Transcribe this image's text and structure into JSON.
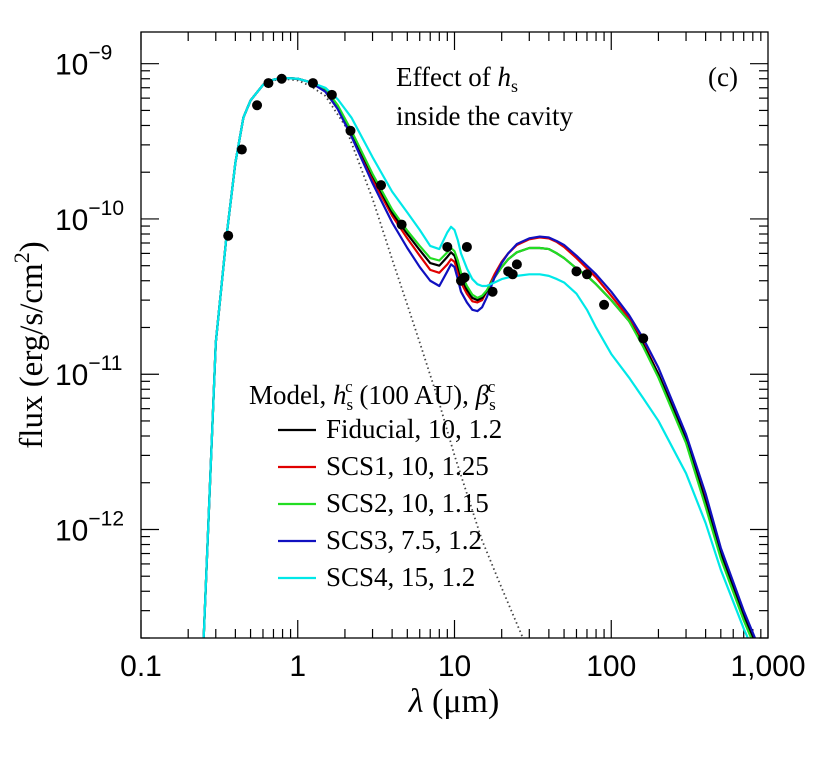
{
  "chart_data": {
    "type": "line",
    "title": "",
    "panel_label": "(c)",
    "annotation": {
      "line1_prefix": "Effect of ",
      "line1_sym": "h",
      "line1_sub": "s",
      "line2": "inside the cavity"
    },
    "xlabel": {
      "sym": "λ",
      "unit": " (μm)"
    },
    "ylabel": {
      "text": "flux (erg/s/cm",
      "sup": "2",
      "close": ")"
    },
    "x_scale": "log",
    "y_scale": "log",
    "xlim": [
      0.1,
      1000
    ],
    "ylim": [
      2e-13,
      1.6e-09
    ],
    "x_ticks": [
      {
        "value": 0.1,
        "label": "0.1"
      },
      {
        "value": 1,
        "label": "1"
      },
      {
        "value": 10,
        "label": "10"
      },
      {
        "value": 100,
        "label": "100"
      },
      {
        "value": 1000,
        "label": "1,000"
      }
    ],
    "y_ticks": [
      {
        "value": 1e-09,
        "base": "10",
        "exp": "−9"
      },
      {
        "value": 1e-10,
        "base": "10",
        "exp": "−10"
      },
      {
        "value": 1e-11,
        "base": "10",
        "exp": "−11"
      },
      {
        "value": 1e-12,
        "base": "10",
        "exp": "−12"
      }
    ],
    "legend": {
      "placement": "bottom-left",
      "title": {
        "a": "Model, ",
        "h": "h",
        "h_sub": "s",
        "h_sup": "c",
        "b": " (100 AU), ",
        "beta": "β",
        "beta_sub": "s",
        "beta_sup": "c"
      }
    },
    "photosphere": {
      "name": "stellar photosphere",
      "color": "#444444",
      "x": [
        0.25,
        0.3,
        0.35,
        0.4,
        0.45,
        0.5,
        0.6,
        0.7,
        0.8,
        1.0,
        1.2,
        1.5,
        2.0,
        3.0,
        4.0,
        5.0,
        6.0,
        8.0,
        10,
        15,
        20,
        30
      ],
      "y": [
        1.8e-13,
        1.6e-11,
        7.5e-11,
        2.3e-10,
        4.5e-10,
        5.8e-10,
        7.3e-10,
        7.8e-10,
        8e-10,
        7.8e-10,
        7.2e-10,
        6.2e-10,
        4e-10,
        1.35e-10,
        5.5e-11,
        2.8e-11,
        1.6e-11,
        6.5e-12,
        3e-12,
        8.5e-13,
        4.2e-13,
        1.6e-13
      ]
    },
    "series": [
      {
        "name": "Fiducial, 10, 1.2",
        "color": "#000000",
        "x": [
          0.25,
          0.3,
          0.35,
          0.4,
          0.45,
          0.5,
          0.6,
          0.7,
          0.8,
          1.0,
          1.2,
          1.5,
          1.8,
          2.2,
          3,
          4,
          5,
          6,
          7,
          8,
          9,
          9.5,
          10,
          10.5,
          11,
          12,
          13,
          14,
          15,
          16,
          17,
          18,
          20,
          22,
          25,
          30,
          35,
          40,
          45,
          50,
          60,
          70,
          80,
          100,
          130,
          160,
          200,
          300,
          400,
          500,
          700,
          1000
        ],
        "y": [
          1.8e-13,
          1.6e-11,
          7.5e-11,
          2.3e-10,
          4.5e-10,
          5.8e-10,
          7.3e-10,
          7.9e-10,
          8.1e-10,
          8e-10,
          7.6e-10,
          6.8e-10,
          5.3e-10,
          3.6e-10,
          1.9e-10,
          1.1e-10,
          8e-11,
          6.3e-11,
          5.2e-11,
          5e-11,
          5.7e-11,
          6.1e-11,
          5.8e-11,
          5e-11,
          4.2e-11,
          3.5e-11,
          3.1e-11,
          3e-11,
          3.1e-11,
          3.4e-11,
          3.8e-11,
          4.2e-11,
          4.9e-11,
          5.5e-11,
          6.1e-11,
          6.5e-11,
          6.5e-11,
          6.4e-11,
          6e-11,
          5.6e-11,
          4.8e-11,
          4.3e-11,
          3.8e-11,
          3e-11,
          2.2e-11,
          1.55e-11,
          1e-11,
          3.8e-12,
          1.5e-12,
          7e-13,
          2.8e-13,
          1.2e-13
        ]
      },
      {
        "name": "SCS1, 10, 1.25",
        "color": "#e00000",
        "x": [
          0.25,
          0.3,
          0.35,
          0.4,
          0.45,
          0.5,
          0.6,
          0.7,
          0.8,
          1.0,
          1.2,
          1.5,
          1.8,
          2.2,
          3,
          4,
          5,
          6,
          7,
          8,
          9,
          9.5,
          10,
          10.5,
          11,
          12,
          13,
          14,
          15,
          16,
          17,
          18,
          20,
          22,
          25,
          30,
          35,
          40,
          45,
          50,
          60,
          70,
          80,
          100,
          130,
          160,
          200,
          300,
          400,
          500,
          700,
          1000
        ],
        "y": [
          1.8e-13,
          1.6e-11,
          7.5e-11,
          2.3e-10,
          4.5e-10,
          5.8e-10,
          7.3e-10,
          7.9e-10,
          8.1e-10,
          8e-10,
          7.6e-10,
          6.7e-10,
          5.2e-10,
          3.5e-10,
          1.8e-10,
          1.05e-10,
          7.5e-11,
          5.8e-11,
          4.7e-11,
          4.5e-11,
          5.1e-11,
          5.5e-11,
          5.3e-11,
          4.6e-11,
          3.9e-11,
          3.3e-11,
          2.95e-11,
          2.9e-11,
          3e-11,
          3.4e-11,
          3.9e-11,
          4.4e-11,
          5.3e-11,
          6e-11,
          6.8e-11,
          7.4e-11,
          7.6e-11,
          7.5e-11,
          7.1e-11,
          6.6e-11,
          5.6e-11,
          4.8e-11,
          4.2e-11,
          3.2e-11,
          2.3e-11,
          1.6e-11,
          1e-11,
          3.9e-12,
          1.6e-12,
          7.2e-13,
          2.9e-13,
          1.2e-13
        ]
      },
      {
        "name": "SCS2, 10, 1.15",
        "color": "#22dd22",
        "x": [
          0.25,
          0.3,
          0.35,
          0.4,
          0.45,
          0.5,
          0.6,
          0.7,
          0.8,
          1.0,
          1.2,
          1.5,
          1.8,
          2.2,
          3,
          4,
          5,
          6,
          7,
          8,
          9,
          9.5,
          10,
          10.5,
          11,
          12,
          13,
          14,
          15,
          16,
          17,
          18,
          20,
          22,
          25,
          30,
          35,
          40,
          45,
          50,
          60,
          70,
          80,
          100,
          130,
          160,
          200,
          300,
          400,
          500,
          700,
          1000
        ],
        "y": [
          1.8e-13,
          1.6e-11,
          7.5e-11,
          2.3e-10,
          4.5e-10,
          5.8e-10,
          7.3e-10,
          7.9e-10,
          8.1e-10,
          8e-10,
          7.6e-10,
          6.9e-10,
          5.4e-10,
          3.7e-10,
          1.95e-10,
          1.15e-10,
          8.4e-11,
          6.7e-11,
          5.6e-11,
          5.4e-11,
          6.1e-11,
          6.5e-11,
          6.2e-11,
          5.4e-11,
          4.5e-11,
          3.7e-11,
          3.25e-11,
          3.1e-11,
          3.2e-11,
          3.45e-11,
          3.8e-11,
          4.2e-11,
          4.9e-11,
          5.5e-11,
          6.1e-11,
          6.5e-11,
          6.5e-11,
          6.4e-11,
          6e-11,
          5.6e-11,
          4.8e-11,
          4.3e-11,
          3.8e-11,
          3e-11,
          2.2e-11,
          1.5e-11,
          9.5e-12,
          3.6e-12,
          1.4e-12,
          6.5e-13,
          2.6e-13,
          1.1e-13
        ]
      },
      {
        "name": "SCS3, 7.5, 1.2",
        "color": "#1010c0",
        "x": [
          0.25,
          0.3,
          0.35,
          0.4,
          0.45,
          0.5,
          0.6,
          0.7,
          0.8,
          1.0,
          1.2,
          1.5,
          1.8,
          2.2,
          3,
          4,
          5,
          6,
          7,
          8,
          9,
          9.5,
          10,
          10.5,
          11,
          12,
          13,
          14,
          15,
          16,
          17,
          18,
          20,
          22,
          25,
          30,
          35,
          40,
          45,
          50,
          60,
          70,
          80,
          100,
          130,
          160,
          200,
          300,
          400,
          500,
          700,
          1000
        ],
        "y": [
          1.8e-13,
          1.6e-11,
          7.5e-11,
          2.3e-10,
          4.5e-10,
          5.8e-10,
          7.3e-10,
          7.9e-10,
          8.1e-10,
          8e-10,
          7.6e-10,
          6.6e-10,
          5.1e-10,
          3.4e-10,
          1.7e-10,
          9.5e-11,
          6.5e-11,
          4.9e-11,
          4e-11,
          3.7e-11,
          4.6e-11,
          5.1e-11,
          4.9e-11,
          4.1e-11,
          3.4e-11,
          2.9e-11,
          2.6e-11,
          2.55e-11,
          2.7e-11,
          3.1e-11,
          3.6e-11,
          4.2e-11,
          5.2e-11,
          6e-11,
          6.9e-11,
          7.5e-11,
          7.7e-11,
          7.6e-11,
          7.2e-11,
          6.8e-11,
          5.8e-11,
          5e-11,
          4.4e-11,
          3.4e-11,
          2.4e-11,
          1.7e-11,
          1.1e-11,
          4.1e-12,
          1.7e-12,
          7.6e-13,
          3e-13,
          1.25e-13
        ]
      },
      {
        "name": "SCS4, 15, 1.2",
        "color": "#00e8e8",
        "x": [
          0.25,
          0.3,
          0.35,
          0.4,
          0.45,
          0.5,
          0.6,
          0.7,
          0.8,
          1.0,
          1.2,
          1.5,
          1.8,
          2.2,
          3,
          4,
          5,
          6,
          7,
          8,
          9,
          9.5,
          10,
          10.5,
          11,
          12,
          13,
          14,
          15,
          16,
          17,
          18,
          20,
          22,
          25,
          30,
          35,
          40,
          45,
          50,
          60,
          70,
          80,
          100,
          130,
          160,
          200,
          300,
          400,
          500,
          700,
          1000
        ],
        "y": [
          1.8e-13,
          1.6e-11,
          7.5e-11,
          2.3e-10,
          4.5e-10,
          5.8e-10,
          7.3e-10,
          7.9e-10,
          8.1e-10,
          8e-10,
          7.6e-10,
          7e-10,
          5.9e-10,
          4.5e-10,
          2.5e-10,
          1.5e-10,
          1.1e-10,
          8.5e-11,
          6.7e-11,
          6.4e-11,
          8.2e-11,
          8.9e-11,
          8.5e-11,
          7.3e-11,
          6e-11,
          4.8e-11,
          4.1e-11,
          3.8e-11,
          3.7e-11,
          3.7e-11,
          3.8e-11,
          3.9e-11,
          4.1e-11,
          4.2e-11,
          4.3e-11,
          4.4e-11,
          4.4e-11,
          4.3e-11,
          4.1e-11,
          3.9e-11,
          3.3e-11,
          2.6e-11,
          2e-11,
          1.35e-11,
          9.5e-12,
          7e-12,
          5e-12,
          2.3e-12,
          1.1e-12,
          5.5e-13,
          2.3e-13,
          1e-13
        ]
      }
    ],
    "observations": {
      "name": "observed photometry",
      "color": "#000000",
      "x": [
        0.36,
        0.44,
        0.55,
        0.65,
        0.79,
        1.25,
        1.65,
        2.17,
        3.4,
        4.6,
        9.0,
        11.0,
        11.6,
        12.0,
        17.5,
        22.0,
        23.5,
        25.0,
        60,
        70,
        90,
        160
      ],
      "y": [
        7.8e-11,
        2.8e-10,
        5.4e-10,
        7.5e-10,
        8e-10,
        7.5e-10,
        6.3e-10,
        3.7e-10,
        1.65e-10,
        9.2e-11,
        6.6e-11,
        4e-11,
        4.2e-11,
        6.6e-11,
        3.4e-11,
        4.6e-11,
        4.4e-11,
        5.1e-11,
        4.6e-11,
        4.4e-11,
        2.8e-11,
        1.7e-11
      ]
    }
  }
}
